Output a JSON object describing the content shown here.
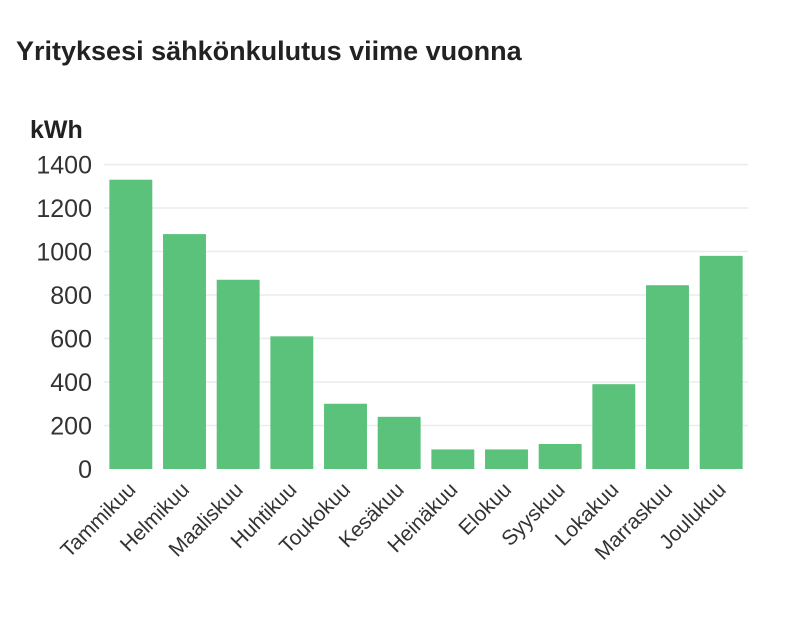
{
  "chart_data": {
    "type": "bar",
    "title": "Yrityksesi sähkönkulutus viime vuonna",
    "ylabel": "kWh",
    "xlabel": "",
    "categories": [
      "Tammikuu",
      "Helmikuu",
      "Maaliskuu",
      "Huhtikuu",
      "Toukokuu",
      "Kesäkuu",
      "Heinäkuu",
      "Elokuu",
      "Syyskuu",
      "Lokakuu",
      "Marraskuu",
      "Joulukuu"
    ],
    "values": [
      1330,
      1080,
      870,
      610,
      300,
      240,
      90,
      90,
      115,
      390,
      845,
      980
    ],
    "ylim": [
      0,
      1400
    ],
    "yticks": [
      0,
      200,
      400,
      600,
      800,
      1000,
      1200,
      1400
    ],
    "grid": true,
    "legend": "none",
    "bar_color": "#5bc27c",
    "grid_color": "#ececec"
  }
}
